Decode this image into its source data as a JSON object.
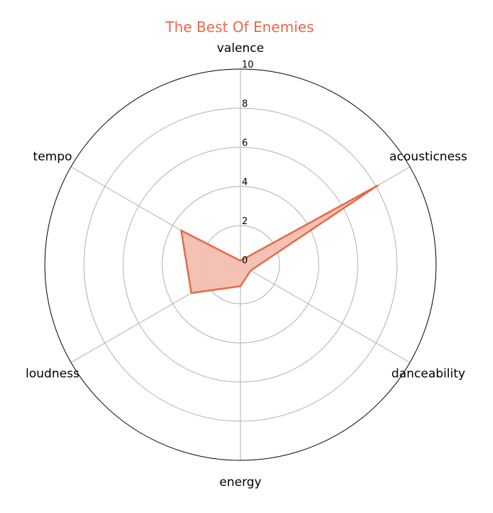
{
  "chart_data": {
    "type": "radar",
    "title": "The Best Of Enemies",
    "title_color": "#E8694A",
    "series_color": "#E8694A",
    "fill_color": "#F2BFB1",
    "axes": [
      "valence",
      "acousticness",
      "danceability",
      "energy",
      "loudness",
      "tempo"
    ],
    "values": [
      0.2,
      8.1,
      0.6,
      1.1,
      2.9,
      3.5
    ],
    "r_ticks": [
      "0",
      "2",
      "4",
      "6",
      "8",
      "10"
    ],
    "r_range": [
      0,
      10
    ],
    "grid": true
  }
}
